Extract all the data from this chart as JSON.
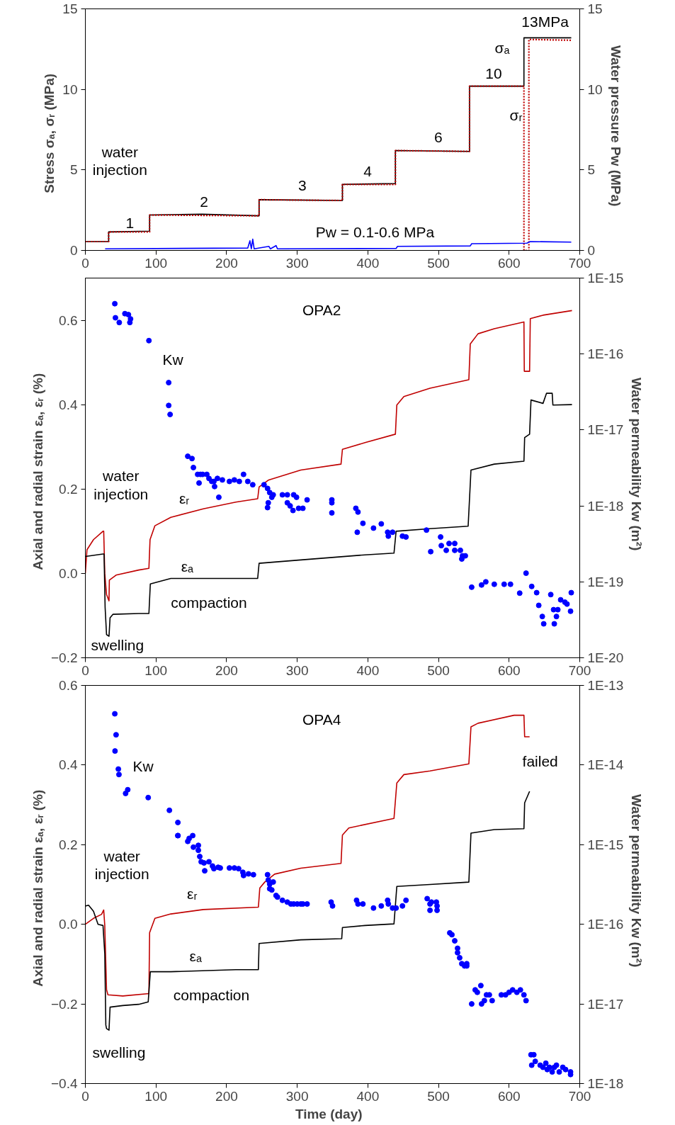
{
  "chart_data": [
    {
      "type": "line",
      "xlim": [
        0,
        700
      ],
      "xticks": [
        0,
        100,
        200,
        300,
        400,
        500,
        600,
        700
      ],
      "ylim": [
        0,
        15
      ],
      "yticks": [
        0,
        5,
        10,
        15
      ],
      "y2lim": [
        0,
        15
      ],
      "y2ticks": [
        0,
        5,
        10,
        15
      ],
      "ylabel": "Stress  σₐ, σᵣ  (MPa)",
      "y2label": "Water pressure  Pw  (MPa)",
      "series": [
        {
          "color": "#000000",
          "x": [
            0,
            33,
            33,
            91,
            91,
            165,
            246,
            246,
            364,
            364,
            439,
            439,
            544,
            544,
            621,
            621,
            688
          ],
          "values": [
            0.55,
            0.55,
            1.15,
            1.2,
            2.2,
            2.25,
            2.15,
            3.15,
            3.1,
            4.1,
            4.15,
            6.2,
            6.15,
            10.2,
            10.2,
            13.2,
            13.2
          ]
        },
        {
          "color": "#c00000",
          "line_style": "dotted",
          "x": [
            0,
            33,
            33,
            91,
            91,
            246,
            246,
            364,
            364,
            439,
            439,
            544,
            544,
            621,
            621,
            628,
            628,
            688
          ],
          "values": [
            0.55,
            0.55,
            1.15,
            1.15,
            2.2,
            2.15,
            3.15,
            3.1,
            4.1,
            4.1,
            6.2,
            6.15,
            10.2,
            10.2,
            0,
            0,
            13.1,
            13.05
          ]
        },
        {
          "color": "#0000ff",
          "axis": "y2",
          "x": [
            28,
            230,
            233,
            235,
            237,
            239,
            260,
            262,
            270,
            272,
            440,
            442,
            545,
            547,
            625,
            630,
            688
          ],
          "values": [
            0.1,
            0.15,
            0.6,
            0.1,
            0.7,
            0.1,
            0.25,
            0.1,
            0.3,
            0.1,
            0.12,
            0.25,
            0.28,
            0.42,
            0.45,
            0.55,
            0.52
          ]
        }
      ],
      "annotations": [
        "water\ninjection",
        "1",
        "2",
        "3",
        "4",
        "6",
        "10",
        "13MPa",
        "σₐ",
        "σᵣ",
        "Pw = 0.1-0.6 MPa"
      ]
    },
    {
      "type": "line",
      "xlim": [
        0,
        700
      ],
      "xticks": [
        0,
        100,
        200,
        300,
        400,
        500,
        600,
        700
      ],
      "ylim": [
        -0.2,
        0.7
      ],
      "yticks": [
        -0.2,
        {
          "value": 0,
          "label": "0.0"
        },
        0.2,
        0.4,
        0.6
      ],
      "log": "y2",
      "y2lim": [
        1e-20,
        1e-15
      ],
      "y2ticks": [
        {
          "value": 1e-20,
          "label": "1E-20"
        },
        {
          "value": 1e-19,
          "label": "1E-19"
        },
        {
          "value": 1e-18,
          "label": "1E-18"
        },
        {
          "value": 1e-17,
          "label": "1E-17"
        },
        {
          "value": 1e-16,
          "label": "1E-16"
        },
        {
          "value": 1e-15,
          "label": "1E-15"
        }
      ],
      "ylabel": "Axial and radial strain  εₐ, εᵣ  (%)",
      "y2label": "Water permeability  Kw  (m²)",
      "series": [
        {
          "color": "#c00000",
          "x": [
            0,
            2.3,
            11.5,
            25,
            26,
            27.5,
            30,
            33.5,
            34,
            43.5,
            75.6,
            90,
            91.6,
            98.5,
            121,
            167,
            213,
            244,
            246,
            259,
            305,
            362,
            364,
            396,
            439,
            441,
            451,
            488,
            543,
            545,
            556,
            579,
            621,
            621.5,
            629,
            630,
            648,
            689
          ],
          "values": [
            0.0,
            0.056,
            0.08,
            0.1,
            0.1,
            0.0,
            -0.05,
            -0.065,
            -0.016,
            -0.004,
            0.008,
            0.012,
            0.08,
            0.113,
            0.133,
            0.153,
            0.169,
            0.177,
            0.205,
            0.221,
            0.245,
            0.259,
            0.294,
            0.31,
            0.33,
            0.399,
            0.419,
            0.439,
            0.459,
            0.544,
            0.568,
            0.58,
            0.596,
            0.479,
            0.479,
            0.604,
            0.612,
            0.623
          ]
        },
        {
          "color": "#000000",
          "x": [
            0,
            25,
            26.5,
            28,
            30,
            33.5,
            35,
            39,
            75.6,
            90,
            92,
            121,
            213,
            244,
            246,
            305,
            396,
            437,
            440,
            488,
            542,
            546,
            579,
            621,
            622,
            629,
            631,
            648,
            653,
            661,
            662,
            689
          ],
          "values": [
            0.04,
            0.046,
            0.046,
            -0.081,
            -0.145,
            -0.149,
            -0.105,
            -0.097,
            -0.095,
            -0.095,
            -0.025,
            -0.012,
            -0.012,
            -0.012,
            0.024,
            0.032,
            0.044,
            0.048,
            0.1,
            0.106,
            0.112,
            0.245,
            0.259,
            0.266,
            0.322,
            0.33,
            0.411,
            0.403,
            0.427,
            0.427,
            0.399,
            0.4
          ]
        },
        {
          "type": "scatter",
          "marker": "circle",
          "color": "#0000ff",
          "axis": "y2",
          "x": [
            41.7,
            42.6,
            48,
            56,
            61,
            63,
            64,
            90,
            118,
            118,
            120,
            145,
            151,
            153,
            159,
            163,
            166,
            161,
            172,
            175,
            179,
            182,
            183,
            187,
            194,
            189,
            204,
            211,
            218,
            224,
            230,
            237,
            253,
            258,
            259,
            258,
            261,
            266,
            264,
            279,
            286,
            286,
            290,
            294,
            295,
            299,
            302,
            308,
            314,
            349,
            349,
            349,
            383,
            386,
            385,
            393,
            408,
            419,
            428,
            429,
            435,
            449,
            454,
            483,
            489,
            503,
            504,
            511,
            515,
            523,
            523,
            531,
            534,
            538,
            533,
            547,
            561,
            567,
            579,
            593,
            602,
            615,
            624,
            632,
            639,
            642,
            647,
            649,
            659,
            663,
            664,
            667,
            669,
            673,
            679,
            682,
            688,
            687
          ],
          "values": [
            4.6e-16,
            3e-16,
            2.6e-16,
            3.4e-16,
            3.3e-16,
            2.6e-16,
            2.9e-16,
            1.5e-16,
            4.2e-17,
            2.1e-17,
            1.6e-17,
            4.5e-18,
            4.2e-18,
            3.2e-18,
            2.6e-18,
            2.6e-18,
            2.6e-18,
            2e-18,
            2.6e-18,
            2.3e-18,
            2.1e-18,
            2.1e-18,
            1.8e-18,
            2.3e-18,
            2.2e-18,
            1.3e-18,
            2.1e-18,
            2.2e-18,
            2.1e-18,
            2.6e-18,
            2.1e-18,
            1.9e-18,
            1.9e-18,
            1.7e-18,
            1.1e-18,
            9.5e-19,
            1.5e-18,
            1.4e-18,
            1.3e-18,
            1.4e-18,
            1.4e-18,
            1.1e-18,
            1e-18,
            8.7e-19,
            1.4e-18,
            1.3e-18,
            9.3e-19,
            9.3e-19,
            1.2e-18,
            1.2e-18,
            1.1e-18,
            8.1e-19,
            9.3e-19,
            8.3e-19,
            4.5e-19,
            5.9e-19,
            5.1e-19,
            5.8e-19,
            4.5e-19,
            4e-19,
            4.5e-19,
            4e-19,
            3.9e-19,
            4.8e-19,
            2.5e-19,
            3.9e-19,
            3e-19,
            2.6e-19,
            3.2e-19,
            3.2e-19,
            2.6e-19,
            2.6e-19,
            2.2e-19,
            2.2e-19,
            2e-19,
            8.5e-20,
            9.1e-20,
            1e-19,
            9.3e-20,
            9.3e-20,
            9.3e-20,
            7.1e-20,
            1.3e-19,
            8.7e-20,
            7.2e-20,
            4.9e-20,
            3.5e-20,
            2.8e-20,
            6.8e-20,
            4.3e-20,
            2.8e-20,
            3.5e-20,
            4.3e-20,
            5.8e-20,
            5.4e-20,
            5.1e-20,
            7.2e-20,
            4.1e-20
          ]
        }
      ],
      "annotations": [
        "OPA2",
        "Kw",
        "water\ninjection",
        "εᵣ",
        "εₐ",
        "compaction",
        "swelling"
      ]
    },
    {
      "type": "line",
      "xlim": [
        0,
        700
      ],
      "xticks": [
        0,
        100,
        200,
        300,
        400,
        500,
        600,
        700
      ],
      "ylim": [
        -0.4,
        0.6
      ],
      "yticks": [
        -0.4,
        -0.2,
        {
          "value": 0,
          "label": "0.0"
        },
        0.2,
        0.4,
        0.6
      ],
      "log": "y2",
      "y2lim": [
        1e-18,
        1e-13
      ],
      "y2ticks": [
        {
          "value": 1e-18,
          "label": "1E-18"
        },
        {
          "value": 1e-17,
          "label": "1E-17"
        },
        {
          "value": 1e-16,
          "label": "1E-16"
        },
        {
          "value": 1e-15,
          "label": "1E-15"
        },
        {
          "value": 1e-14,
          "label": "1E-14"
        },
        {
          "value": 1e-13,
          "label": "1E-13"
        }
      ],
      "xlabel": "Time   (day)",
      "ylabel": "Axial and radial strain  εₐ, εᵣ  (%)",
      "y2label": "Water permeability  Kw  (m²)",
      "series": [
        {
          "color": "#c00000",
          "x": [
            0,
            11.5,
            23,
            26,
            27.5,
            30,
            32,
            53,
            90,
            91,
            98.5,
            121,
            167,
            245,
            247,
            254,
            268,
            305,
            362,
            364,
            373,
            437,
            441,
            451,
            488,
            543,
            546,
            556,
            607,
            621,
            622,
            629
          ],
          "values": [
            0.0,
            0.015,
            0.025,
            0.036,
            -0.003,
            -0.164,
            -0.177,
            -0.18,
            -0.174,
            -0.021,
            0.015,
            0.026,
            0.037,
            0.043,
            0.091,
            0.106,
            0.126,
            0.141,
            0.153,
            0.224,
            0.242,
            0.266,
            0.355,
            0.376,
            0.385,
            0.403,
            0.496,
            0.505,
            0.525,
            0.525,
            0.471,
            0.471
          ]
        },
        {
          "color": "#000000",
          "x": [
            0,
            4.6,
            11.5,
            18,
            25,
            27.5,
            29,
            30,
            33.5,
            35,
            53,
            75.6,
            89,
            92,
            121,
            213,
            245,
            246,
            305,
            363,
            364,
            396,
            437,
            441,
            488,
            543,
            546,
            579,
            621,
            622,
            629
          ],
          "values": [
            0.046,
            0.048,
            0.033,
            0.0,
            -0.003,
            -0.074,
            -0.253,
            -0.262,
            -0.266,
            -0.208,
            -0.204,
            -0.201,
            -0.195,
            -0.119,
            -0.119,
            -0.114,
            -0.114,
            -0.048,
            -0.039,
            -0.036,
            -0.008,
            -0.003,
            0.001,
            0.095,
            0.1,
            0.106,
            0.229,
            0.238,
            0.24,
            0.305,
            0.334
          ]
        },
        {
          "type": "scatter",
          "marker": "circle",
          "color": "#0000ff",
          "axis": "y2",
          "x": [
            41.7,
            43.5,
            42,
            46.7,
            47.6,
            57,
            60,
            89,
            119,
            131,
            131,
            131,
            145,
            147,
            152,
            153,
            160,
            160,
            162,
            164,
            168,
            169,
            175,
            180,
            182,
            188,
            191,
            204,
            211,
            217,
            223,
            224,
            231,
            238,
            258,
            259,
            261,
            261,
            266,
            264,
            270,
            272,
            279,
            286,
            291,
            295,
            300,
            305,
            308,
            314,
            348,
            350,
            384,
            386,
            393,
            408,
            419,
            428,
            429,
            435,
            440,
            449,
            454,
            484,
            488,
            490,
            488,
            497,
            498,
            498,
            516,
            519,
            523,
            527,
            527,
            530,
            533,
            537,
            540,
            540,
            547,
            552,
            555,
            560,
            561,
            565,
            568,
            572,
            576,
            589,
            595,
            600,
            605,
            611,
            616,
            621,
            624,
            631,
            635,
            632,
            637,
            644,
            648,
            652,
            654,
            657,
            661,
            664,
            667,
            671,
            676,
            680,
            687,
            687
          ],
          "values": [
            4.4e-14,
            2.4e-14,
            1.5e-14,
            8.9e-15,
            7.6e-15,
            4.4e-15,
            4.9e-15,
            3.9e-15,
            2.7e-15,
            1.9e-15,
            1.3e-15,
            1.3e-15,
            1.1e-15,
            1.2e-15,
            1.3e-15,
            9.3e-16,
            9.8e-16,
            8.5e-16,
            7.1e-16,
            6.1e-16,
            5.9e-16,
            4.7e-16,
            6.1e-16,
            5.4e-16,
            5e-16,
            5.2e-16,
            5.1e-16,
            5.1e-16,
            5.1e-16,
            5e-16,
            4.5e-16,
            4.1e-16,
            4.3e-16,
            4.2e-16,
            4.2e-16,
            3.6e-16,
            3.2e-16,
            2.8e-16,
            3.4e-16,
            2.7e-16,
            2.3e-16,
            2.2e-16,
            2e-16,
            1.9e-16,
            1.8e-16,
            1.8e-16,
            1.8e-16,
            1.8e-16,
            1.8e-16,
            1.8e-16,
            1.9e-16,
            1.7e-16,
            2e-16,
            1.8e-16,
            1.8e-16,
            1.6e-16,
            1.7e-16,
            2e-16,
            1.8e-16,
            1.6e-16,
            1.6e-16,
            1.7e-16,
            2e-16,
            2.1e-16,
            1.8e-16,
            1.9e-16,
            1.5e-16,
            1.9e-16,
            1.7e-16,
            1.5e-16,
            7.8e-17,
            7.4e-17,
            6.2e-17,
            5e-17,
            4.4e-17,
            3.8e-17,
            3.2e-17,
            3e-17,
            3.2e-17,
            3e-17,
            1e-17,
            1.5e-17,
            1.4e-17,
            1.7e-17,
            1e-17,
            1.1e-17,
            1.3e-17,
            1.3e-17,
            1.1e-17,
            1.3e-17,
            1.3e-17,
            1.4e-17,
            1.5e-17,
            1.4e-17,
            1.5e-17,
            1.3e-17,
            1.1e-17,
            2.3e-18,
            2.3e-18,
            1.7e-18,
            1.9e-18,
            1.7e-18,
            1.6e-18,
            1.8e-18,
            1.5e-18,
            1.6e-18,
            1.4e-18,
            1.6e-18,
            1.7e-18,
            1.4e-18,
            1.6e-18,
            1.5e-18,
            1.4e-18,
            1.3e-18
          ]
        }
      ],
      "annotations": [
        "OPA4",
        "Kw",
        "failed",
        "water\ninjection",
        "εᵣ",
        "εₐ",
        "compaction",
        "swelling"
      ]
    }
  ]
}
